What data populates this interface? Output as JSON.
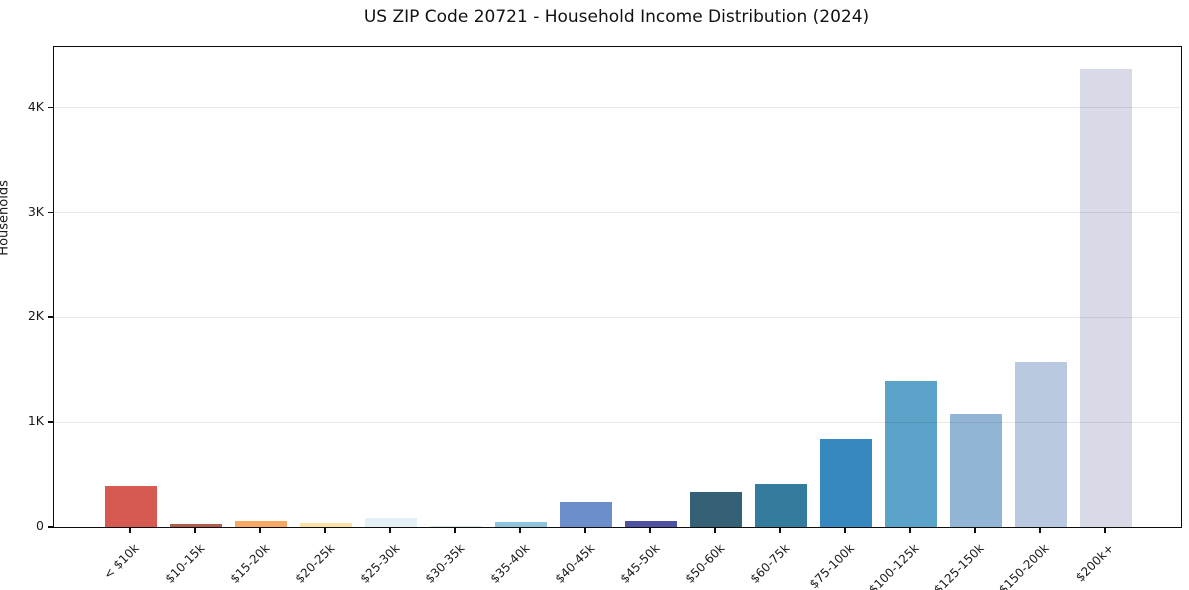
{
  "chart_data": {
    "type": "bar",
    "title": "US ZIP Code 20721 - Household Income Distribution (2024)",
    "xlabel": "",
    "ylabel": "Households",
    "categories": [
      "< $10k",
      "$10-15k",
      "$15-20k",
      "$20-25k",
      "$25-30k",
      "$30-35k",
      "$35-40k",
      "$40-45k",
      "$45-50k",
      "$50-60k",
      "$60-75k",
      "$75-100k",
      "$100-125k",
      "$125-150k",
      "$150-200k",
      "$200k+"
    ],
    "values": [
      390,
      25,
      60,
      38,
      90,
      12,
      50,
      235,
      55,
      330,
      415,
      840,
      1390,
      1080,
      1575,
      4375
    ],
    "bar_colors": [
      "#d75a52",
      "#ad5c4e",
      "#f7a862",
      "#f8e3a1",
      "#e3f0f6",
      "#d5e5e0",
      "#8fc3e0",
      "#6c8fcb",
      "#4f51a2",
      "#356176",
      "#337c9e",
      "#3888c0",
      "#5ba3c9",
      "#92b5d6",
      "#b9c9e0",
      "#d8dae8"
    ],
    "ytick_labels": [
      "0",
      "1K",
      "2K",
      "3K",
      "4K"
    ],
    "ytick_values": [
      0,
      1000,
      2000,
      3000,
      4000
    ],
    "ylim": [
      0,
      4580
    ],
    "grid": "horizontal",
    "legend": "none",
    "background_color": "#ffffff",
    "spine_color": "#0d0d0d"
  }
}
